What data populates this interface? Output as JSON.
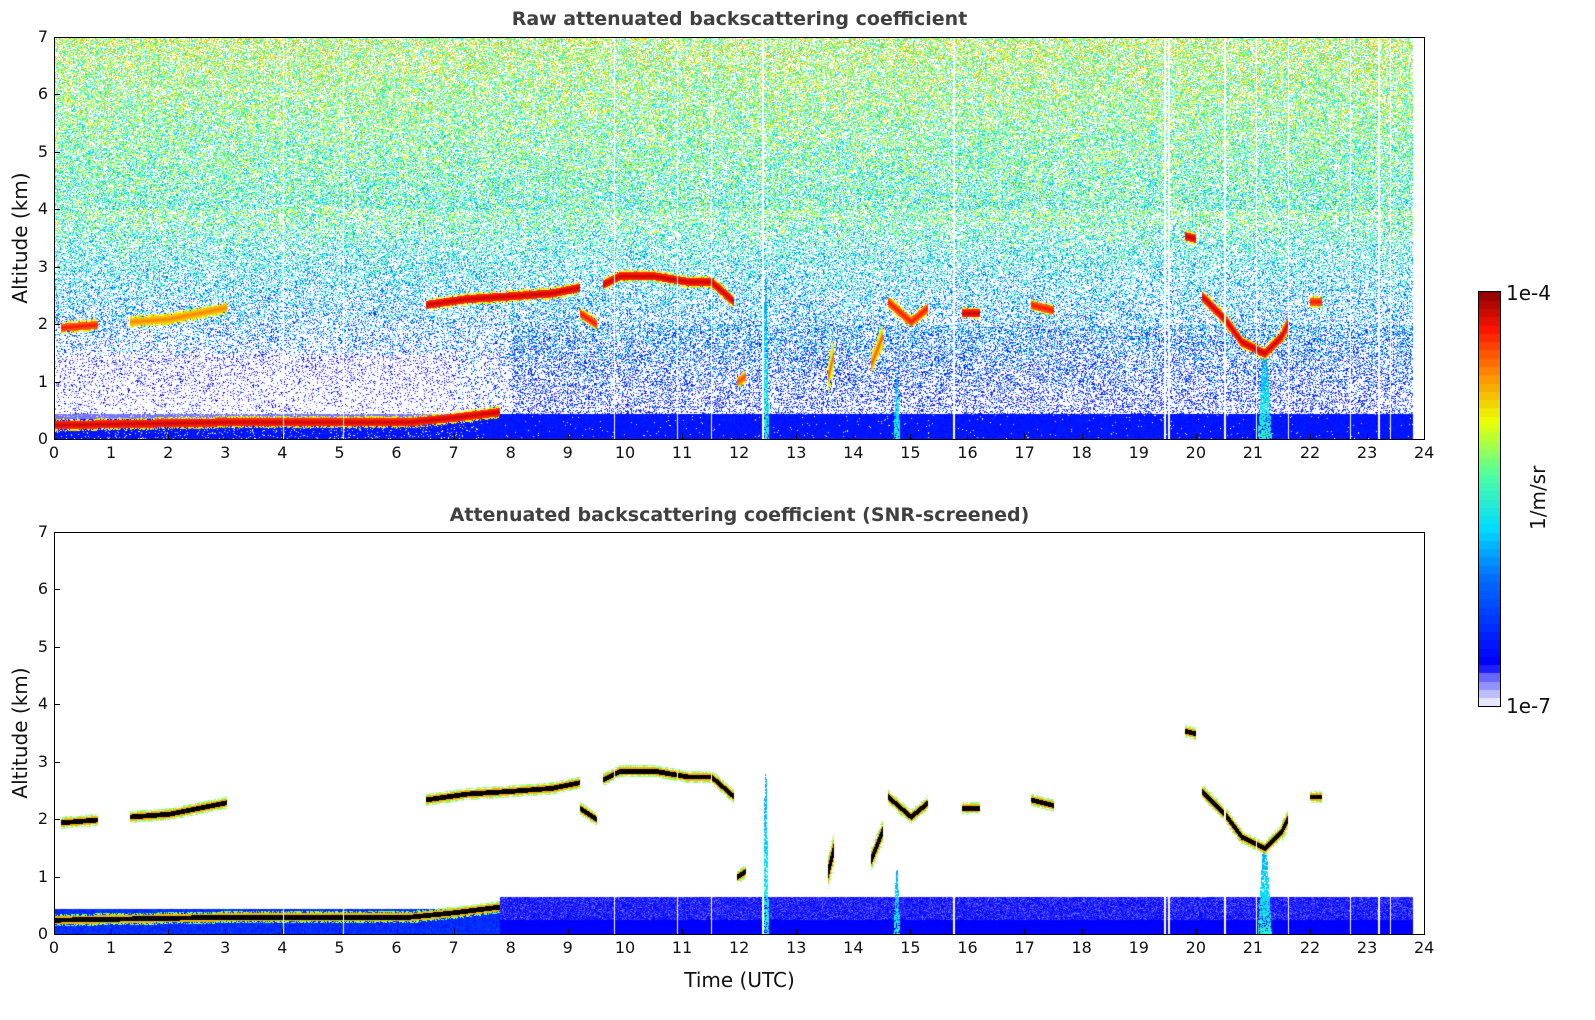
{
  "chart_data": [
    {
      "type": "heatmap",
      "title": "Raw attenuated backscattering coefficient",
      "xlabel": "",
      "ylabel": "Altitude (km)",
      "xlim": [
        0,
        24
      ],
      "ylim": [
        0,
        7
      ],
      "xticks": [
        "0",
        "1",
        "2",
        "3",
        "4",
        "5",
        "6",
        "7",
        "8",
        "9",
        "10",
        "11",
        "12",
        "13",
        "14",
        "15",
        "16",
        "17",
        "18",
        "19",
        "20",
        "21",
        "22",
        "23",
        "24"
      ],
      "yticks": [
        "0",
        "1",
        "2",
        "3",
        "4",
        "5",
        "6",
        "7"
      ],
      "screened": false
    },
    {
      "type": "heatmap",
      "title": "Attenuated backscattering coefficient (SNR-screened)",
      "xlabel": "Time (UTC)",
      "ylabel": "Altitude (km)",
      "xlim": [
        0,
        24
      ],
      "ylim": [
        0,
        7
      ],
      "xticks": [
        "0",
        "1",
        "2",
        "3",
        "4",
        "5",
        "6",
        "7",
        "8",
        "9",
        "10",
        "11",
        "12",
        "13",
        "14",
        "15",
        "16",
        "17",
        "18",
        "19",
        "20",
        "21",
        "22",
        "23",
        "24"
      ],
      "yticks": [
        "0",
        "1",
        "2",
        "3",
        "4",
        "5",
        "6",
        "7"
      ],
      "screened": true
    }
  ],
  "colorbar": {
    "label": "1/m/sr",
    "max_label": "1e-4",
    "min_label": "1e-7",
    "scale": "log",
    "range": [
      1e-07,
      0.0001
    ]
  },
  "data_end_time": 23.8,
  "missing_profiles": [
    4.0,
    5.05,
    9.8,
    10.9,
    11.5,
    12.4,
    15.75,
    19.45,
    19.52,
    20.5,
    21.05,
    21.62,
    22.7,
    23.2,
    23.4
  ],
  "layers": [
    {
      "name": "boundary-layer-top",
      "points": [
        [
          0,
          0.25
        ],
        [
          3,
          0.3
        ],
        [
          6.2,
          0.3
        ],
        [
          7,
          0.38
        ],
        [
          7.8,
          0.48
        ]
      ],
      "intensity": 0.95
    },
    {
      "name": "cloud",
      "points": [
        [
          0.1,
          1.95
        ],
        [
          0.75,
          2.0
        ]
      ],
      "intensity": 0.9
    },
    {
      "name": "cloud",
      "points": [
        [
          1.3,
          2.05
        ],
        [
          2,
          2.1
        ],
        [
          2.5,
          2.2
        ],
        [
          3,
          2.3
        ]
      ],
      "intensity": 0.8
    },
    {
      "name": "cloud",
      "points": [
        [
          6.5,
          2.35
        ],
        [
          7.2,
          2.45
        ],
        [
          8,
          2.5
        ],
        [
          8.7,
          2.55
        ],
        [
          9.2,
          2.65
        ]
      ],
      "intensity": 0.95
    },
    {
      "name": "cloud",
      "points": [
        [
          9.6,
          2.7
        ],
        [
          9.9,
          2.85
        ],
        [
          10.5,
          2.85
        ],
        [
          11.1,
          2.75
        ],
        [
          11.5,
          2.75
        ],
        [
          11.9,
          2.4
        ]
      ],
      "intensity": 0.95
    },
    {
      "name": "cloud",
      "points": [
        [
          9.2,
          2.2
        ],
        [
          9.5,
          2.0
        ]
      ],
      "intensity": 0.9
    },
    {
      "name": "cloud",
      "points": [
        [
          14.6,
          2.4
        ],
        [
          15.0,
          2.05
        ],
        [
          15.3,
          2.3
        ]
      ],
      "intensity": 0.9
    },
    {
      "name": "cloud",
      "points": [
        [
          15.9,
          2.2
        ],
        [
          16.2,
          2.2
        ]
      ],
      "intensity": 0.95
    },
    {
      "name": "cloud",
      "points": [
        [
          17.1,
          2.35
        ],
        [
          17.5,
          2.25
        ]
      ],
      "intensity": 0.9
    },
    {
      "name": "cloud",
      "points": [
        [
          19.8,
          3.55
        ],
        [
          20.0,
          3.5
        ]
      ],
      "intensity": 0.95
    },
    {
      "name": "cloud",
      "points": [
        [
          20.1,
          2.5
        ],
        [
          20.5,
          2.1
        ],
        [
          20.8,
          1.7
        ],
        [
          21.2,
          1.5
        ],
        [
          21.5,
          1.8
        ],
        [
          21.6,
          2.0
        ]
      ],
      "intensity": 0.95
    },
    {
      "name": "cloud",
      "points": [
        [
          22.0,
          2.4
        ],
        [
          22.2,
          2.4
        ]
      ],
      "intensity": 0.9
    },
    {
      "name": "cloud",
      "points": [
        [
          13.55,
          1.1
        ],
        [
          13.65,
          1.5
        ]
      ],
      "intensity": 0.85
    },
    {
      "name": "cloud",
      "points": [
        [
          14.3,
          1.3
        ],
        [
          14.5,
          1.8
        ]
      ],
      "intensity": 0.85
    },
    {
      "name": "cloud",
      "points": [
        [
          11.95,
          1.0
        ],
        [
          12.1,
          1.1
        ]
      ],
      "intensity": 0.85
    }
  ],
  "plumes": [
    {
      "time": 12.45,
      "width": 0.12,
      "top": 2.8
    },
    {
      "time": 14.75,
      "width": 0.12,
      "top": 1.15
    },
    {
      "time": 21.2,
      "width": 0.25,
      "top": 1.6
    }
  ]
}
